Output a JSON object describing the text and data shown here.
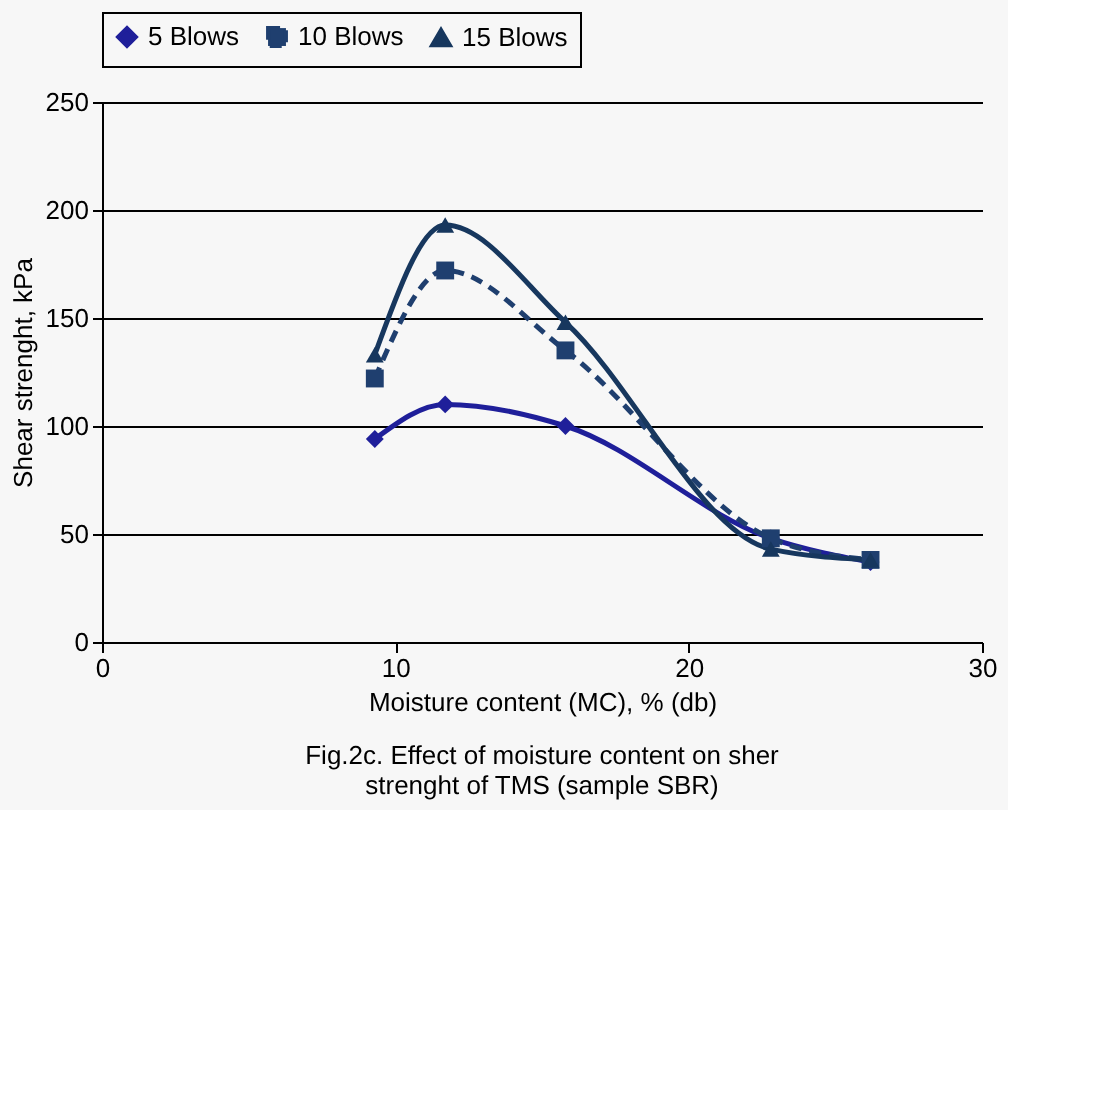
{
  "chart_data": {
    "type": "line",
    "xlabel": "Moisture content (MC), % (db)",
    "ylabel": "Shear strenght, kPa",
    "annotations": [
      "Fig.2c. Effect of moisture content on sher strenght of TMS (sample SBR)"
    ],
    "x": [
      9.3,
      11.7,
      15.8,
      22.8,
      26.2
    ],
    "series": [
      {
        "name": "5 Blows",
        "color": "#1f1f9a",
        "values": [
          94,
          110,
          100,
          48,
          37
        ],
        "marker": "diamond",
        "line_style": "solid"
      },
      {
        "name": "10 Blows",
        "color": "#1f3f6f",
        "values": [
          122,
          172,
          135,
          48,
          38
        ],
        "marker": "square",
        "line_style": "dashed"
      },
      {
        "name": "15 Blows",
        "color": "#17375e",
        "values": [
          133,
          193,
          148,
          43,
          38
        ],
        "marker": "triangle",
        "line_style": "solid"
      }
    ],
    "xlim": [
      0,
      30
    ],
    "xticks": [
      0,
      10,
      20,
      30
    ],
    "ylim": [
      0,
      250
    ],
    "yticks": [
      0,
      50,
      100,
      150,
      200,
      250
    ],
    "grid": "y",
    "legend": "top"
  }
}
